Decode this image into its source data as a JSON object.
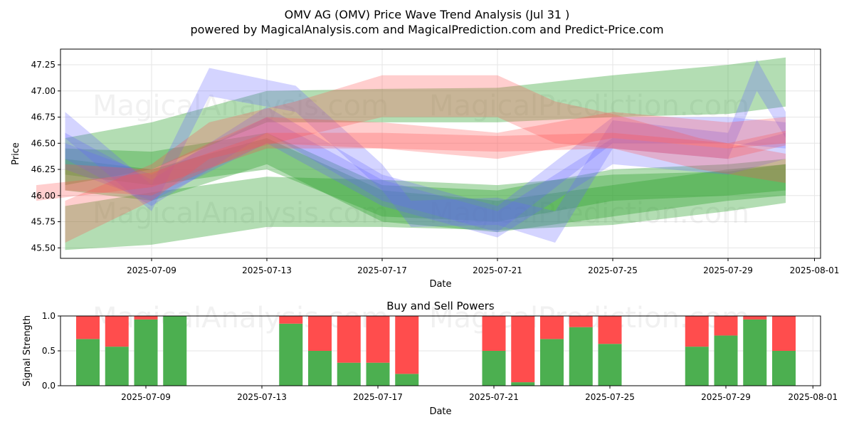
{
  "header": {
    "title": "OMV AG (OMV) Price Wave Trend Analysis (Jul 31 )",
    "subtitle": "powered by MagicalAnalysis.com and MagicalPrediction.com and Predict-Price.com"
  },
  "watermarks": [
    "MagicalAnalysis.com",
    "MagicalPrediction.com"
  ],
  "chart_data": [
    {
      "type": "area",
      "title": "",
      "xlabel": "Date",
      "ylabel": "Price",
      "ylim": [
        45.4,
        47.4
      ],
      "x_ticks": [
        "2025-07-09",
        "2025-07-13",
        "2025-07-17",
        "2025-07-21",
        "2025-07-25",
        "2025-07-29",
        "2025-08-01"
      ],
      "y_ticks": [
        "45.50",
        "45.75",
        "46.00",
        "46.25",
        "46.50",
        "46.75",
        "47.00",
        "47.25"
      ],
      "grid": true,
      "series_colors": {
        "green": "#2ca02c",
        "blue": "#6464ff",
        "red": "#ff5050"
      },
      "bands": [
        {
          "color": "green",
          "points": [
            [
              "2025-07-06",
              46.1,
              46.55
            ],
            [
              "2025-07-09",
              46.25,
              46.7
            ],
            [
              "2025-07-13",
              46.7,
              47.0
            ],
            [
              "2025-07-17",
              46.7,
              47.02
            ],
            [
              "2025-07-21",
              46.7,
              47.03
            ],
            [
              "2025-07-25",
              46.75,
              47.15
            ],
            [
              "2025-07-29",
              46.78,
              47.25
            ],
            [
              "2025-07-31",
              46.85,
              47.32
            ]
          ]
        },
        {
          "color": "green",
          "points": [
            [
              "2025-07-06",
              45.48,
              45.9
            ],
            [
              "2025-07-09",
              45.53,
              46.03
            ],
            [
              "2025-07-13",
              45.7,
              46.18
            ],
            [
              "2025-07-17",
              45.7,
              46.15
            ],
            [
              "2025-07-21",
              45.67,
              46.1
            ],
            [
              "2025-07-25",
              45.72,
              46.2
            ],
            [
              "2025-07-29",
              45.85,
              46.23
            ],
            [
              "2025-07-31",
              45.93,
              46.3
            ]
          ]
        },
        {
          "color": "green",
          "points": [
            [
              "2025-07-06",
              46.2,
              46.45
            ],
            [
              "2025-07-09",
              46.1,
              46.42
            ],
            [
              "2025-07-13",
              46.25,
              46.6
            ],
            [
              "2025-07-17",
              45.8,
              46.1
            ],
            [
              "2025-07-21",
              45.75,
              46.05
            ],
            [
              "2025-07-25",
              45.95,
              46.25
            ],
            [
              "2025-07-29",
              46.0,
              46.3
            ],
            [
              "2025-07-31",
              46.05,
              46.35
            ]
          ]
        },
        {
          "color": "green",
          "points": [
            [
              "2025-07-06",
              46.05,
              46.35
            ],
            [
              "2025-07-09",
              45.95,
              46.25
            ],
            [
              "2025-07-13",
              46.3,
              46.55
            ],
            [
              "2025-07-17",
              45.75,
              46.05
            ],
            [
              "2025-07-21",
              45.65,
              45.95
            ],
            [
              "2025-07-25",
              45.8,
              46.1
            ],
            [
              "2025-07-29",
              45.95,
              46.25
            ],
            [
              "2025-07-31",
              46.0,
              46.3
            ]
          ]
        },
        {
          "color": "blue",
          "points": [
            [
              "2025-07-06",
              46.55,
              46.8
            ],
            [
              "2025-07-09",
              45.85,
              46.1
            ],
            [
              "2025-07-11",
              46.95,
              47.22
            ],
            [
              "2025-07-14",
              46.8,
              47.05
            ],
            [
              "2025-07-17",
              46.05,
              46.3
            ],
            [
              "2025-07-18",
              45.7,
              45.95
            ],
            [
              "2025-07-21",
              45.72,
              45.98
            ],
            [
              "2025-07-23",
              45.55,
              45.85
            ],
            [
              "2025-07-25",
              46.45,
              46.72
            ],
            [
              "2025-07-29",
              46.35,
              46.6
            ],
            [
              "2025-07-30",
              47.0,
              47.3
            ],
            [
              "2025-07-31",
              46.55,
              46.8
            ]
          ]
        },
        {
          "color": "blue",
          "points": [
            [
              "2025-07-06",
              46.35,
              46.6
            ],
            [
              "2025-07-09",
              45.9,
              46.15
            ],
            [
              "2025-07-13",
              46.6,
              46.85
            ],
            [
              "2025-07-17",
              45.95,
              46.2
            ],
            [
              "2025-07-21",
              45.65,
              45.9
            ],
            [
              "2025-07-25",
              46.5,
              46.75
            ],
            [
              "2025-07-29",
              46.5,
              46.75
            ],
            [
              "2025-07-31",
              46.45,
              46.7
            ]
          ]
        },
        {
          "color": "blue",
          "points": [
            [
              "2025-07-06",
              46.25,
              46.5
            ],
            [
              "2025-07-09",
              45.95,
              46.2
            ],
            [
              "2025-07-13",
              46.5,
              46.75
            ],
            [
              "2025-07-17",
              45.9,
              46.15
            ],
            [
              "2025-07-21",
              45.6,
              45.85
            ],
            [
              "2025-07-25",
              46.3,
              46.55
            ],
            [
              "2025-07-29",
              46.2,
              46.45
            ],
            [
              "2025-07-31",
              46.35,
              46.6
            ]
          ]
        },
        {
          "color": "red",
          "points": [
            [
              "2025-07-05",
              45.95,
              46.1
            ],
            [
              "2025-07-09",
              46.08,
              46.22
            ],
            [
              "2025-07-13",
              46.45,
              46.6
            ],
            [
              "2025-07-17",
              46.45,
              46.6
            ],
            [
              "2025-07-21",
              46.42,
              46.57
            ],
            [
              "2025-07-25",
              46.45,
              46.6
            ],
            [
              "2025-07-29",
              46.35,
              46.5
            ],
            [
              "2025-07-31",
              46.48,
              46.62
            ]
          ]
        },
        {
          "color": "red",
          "points": [
            [
              "2025-07-06",
              45.55,
              45.95
            ],
            [
              "2025-07-09",
              45.95,
              46.3
            ],
            [
              "2025-07-11",
              46.35,
              46.7
            ],
            [
              "2025-07-14",
              46.55,
              46.9
            ],
            [
              "2025-07-17",
              46.75,
              47.15
            ],
            [
              "2025-07-21",
              46.75,
              47.15
            ],
            [
              "2025-07-23",
              46.5,
              46.9
            ],
            [
              "2025-07-25",
              46.45,
              46.78
            ],
            [
              "2025-07-28",
              46.25,
              46.55
            ],
            [
              "2025-07-31",
              46.12,
              46.4
            ]
          ]
        },
        {
          "color": "red",
          "points": [
            [
              "2025-07-06",
              46.05,
              46.3
            ],
            [
              "2025-07-09",
              46.0,
              46.25
            ],
            [
              "2025-07-13",
              46.5,
              46.75
            ],
            [
              "2025-07-17",
              46.45,
              46.7
            ],
            [
              "2025-07-21",
              46.35,
              46.6
            ],
            [
              "2025-07-25",
              46.55,
              46.8
            ],
            [
              "2025-07-29",
              46.45,
              46.7
            ],
            [
              "2025-07-31",
              46.5,
              46.75
            ]
          ]
        }
      ]
    },
    {
      "type": "bar",
      "title": "Buy and Sell Powers",
      "xlabel": "Date",
      "ylabel": "Signal Strength",
      "ylim": [
        0,
        1.0
      ],
      "x_ticks": [
        "2025-07-09",
        "2025-07-13",
        "2025-07-17",
        "2025-07-21",
        "2025-07-25",
        "2025-07-29",
        "2025-08-01"
      ],
      "y_ticks": [
        "0.0",
        "0.5",
        "1.0"
      ],
      "categories": [
        "2025-07-07",
        "2025-07-08",
        "2025-07-09",
        "2025-07-10",
        "2025-07-14",
        "2025-07-15",
        "2025-07-16",
        "2025-07-17",
        "2025-07-18",
        "2025-07-21",
        "2025-07-22",
        "2025-07-23",
        "2025-07-24",
        "2025-07-25",
        "2025-07-28",
        "2025-07-29",
        "2025-07-30",
        "2025-07-31"
      ],
      "series": [
        {
          "name": "Buy",
          "color": "#4caf50",
          "values": [
            0.67,
            0.56,
            0.95,
            1.0,
            0.89,
            0.5,
            0.33,
            0.33,
            0.17,
            0.5,
            0.05,
            0.67,
            0.84,
            0.6,
            0.56,
            0.72,
            0.95,
            0.5
          ]
        },
        {
          "name": "Sell",
          "color": "#ff4d4d",
          "values": [
            0.33,
            0.44,
            0.05,
            0.0,
            0.11,
            0.5,
            0.67,
            0.67,
            0.83,
            0.5,
            0.95,
            0.33,
            0.16,
            0.4,
            0.44,
            0.28,
            0.05,
            0.5
          ]
        }
      ]
    }
  ]
}
